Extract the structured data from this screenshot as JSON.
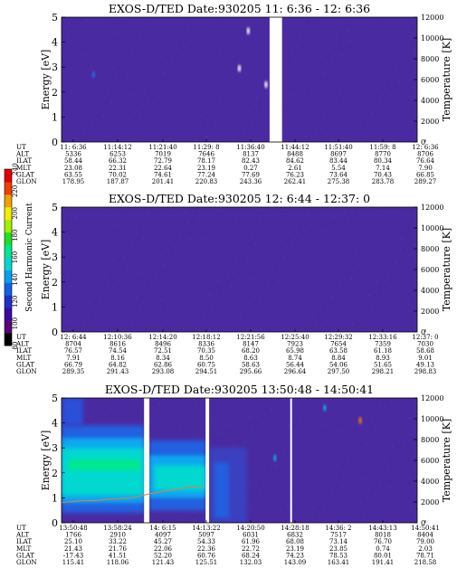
{
  "colorbar": {
    "label": "Second Harmonic Current",
    "ticks": [
      "80",
      "100",
      "120",
      "140",
      "160",
      "180",
      "200",
      "220",
      "240"
    ],
    "colors": [
      "#000000",
      "#5a0078",
      "#3a0aa0",
      "#2030c8",
      "#1060e8",
      "#00a0f0",
      "#00d8d0",
      "#00e890",
      "#20e020",
      "#a0f000",
      "#f0f000",
      "#f0a000",
      "#f04000",
      "#e00000"
    ]
  },
  "chart_data": [
    {
      "type": "heatmap",
      "title": "EXOS-D/TED   Date:930205   11: 6:36 - 12: 6:36",
      "ylabel": "Energy [eV]",
      "y2label": "Temperature [K]",
      "ylim": [
        0,
        5
      ],
      "yticks": [
        "0",
        "1",
        "2",
        "3",
        "4",
        "5"
      ],
      "y2lim": [
        0,
        12000
      ],
      "y2ticks": [
        "0",
        "2000",
        "4000",
        "6000",
        "8000",
        "10000",
        "12000"
      ],
      "background": "#4a2aa0",
      "gaps": [
        [
          0.585,
          0.62
        ]
      ],
      "features": [
        {
          "kind": "spot",
          "x": 0.5,
          "y": 2.95,
          "color": "#ffffff"
        },
        {
          "kind": "spot",
          "x": 0.525,
          "y": 4.45,
          "color": "#ffffff"
        },
        {
          "kind": "spot",
          "x": 0.575,
          "y": 2.3,
          "color": "#ffffff"
        },
        {
          "kind": "spot",
          "x": 0.09,
          "y": 2.7,
          "color": "#2a6ae0"
        }
      ],
      "temperature_trace": [],
      "rows": [
        {
          "label": "UT",
          "values": [
            "11: 6:36",
            "11:14:12",
            "11:21:40",
            "11:29: 8",
            "11:36:40",
            "11:44:12",
            "11:51:40",
            "11:59: 8",
            "12: 6:36"
          ]
        },
        {
          "label": "ALT",
          "values": [
            "5336",
            "6253",
            "7019",
            "7646",
            "8137",
            "8488",
            "8697",
            "8770",
            "8706"
          ]
        },
        {
          "label": "ILAT",
          "values": [
            "58.44",
            "66.32",
            "72.79",
            "78.17",
            "82.43",
            "84.62",
            "83.44",
            "80.34",
            "76.64"
          ]
        },
        {
          "label": "MLT",
          "values": [
            "23.08",
            "22.31",
            "22.64",
            "23.19",
            "0.27",
            "2.61",
            "5.54",
            "7.14",
            "7.90"
          ]
        },
        {
          "label": "GLAT",
          "values": [
            "63.55",
            "70.02",
            "74.61",
            "77.24",
            "77.69",
            "76.23",
            "73.64",
            "70.43",
            "66.85"
          ]
        },
        {
          "label": "GLON",
          "values": [
            "178.95",
            "187.87",
            "201.41",
            "220.83",
            "243.36",
            "262.41",
            "275.38",
            "283.78",
            "289.27"
          ]
        }
      ]
    },
    {
      "type": "heatmap",
      "title": "EXOS-D/TED   Date:930205   12: 6:44 - 12:37: 0",
      "ylabel": "Energy [eV]",
      "y2label": "Temperature [K]",
      "ylim": [
        0,
        5
      ],
      "yticks": [
        "0",
        "1",
        "2",
        "3",
        "4",
        "5"
      ],
      "y2lim": [
        0,
        12000
      ],
      "y2ticks": [
        "0",
        "2000",
        "4000",
        "6000",
        "8000",
        "10000",
        "12000"
      ],
      "background": "#4a2aa0",
      "gaps": [],
      "features": [],
      "temperature_trace": [],
      "rows": [
        {
          "label": "UT",
          "values": [
            "12: 6:44",
            "12:10:36",
            "12:14:20",
            "12:18:12",
            "12:21:56",
            "12:25:40",
            "12:29:32",
            "12:33:16",
            "12:37: 0"
          ]
        },
        {
          "label": "ALT",
          "values": [
            "8704",
            "8616",
            "8496",
            "8336",
            "8147",
            "7923",
            "7654",
            "7359",
            "7030"
          ]
        },
        {
          "label": "ILAT",
          "values": [
            "76.57",
            "74.54",
            "72.51",
            "70.35",
            "68.20",
            "65.98",
            "63.58",
            "61.18",
            "58.68"
          ]
        },
        {
          "label": "MLT",
          "values": [
            "7.91",
            "8.16",
            "8.34",
            "8.50",
            "8.63",
            "8.74",
            "8.84",
            "8.93",
            "9.01"
          ]
        },
        {
          "label": "GLAT",
          "values": [
            "66.79",
            "64.82",
            "62.86",
            "60.75",
            "58.63",
            "56.44",
            "54.06",
            "51.65",
            "49.13"
          ]
        },
        {
          "label": "GLON",
          "values": [
            "289.35",
            "291.43",
            "293.08",
            "294.51",
            "295.66",
            "296.64",
            "297.50",
            "298.21",
            "298.83"
          ]
        }
      ]
    },
    {
      "type": "heatmap",
      "title": "EXOS-D/TED   Date:930205   13:50:48 - 14:50:41",
      "ylabel": "Energy [eV]",
      "y2label": "Temperature [K]",
      "ylim": [
        0,
        5
      ],
      "yticks": [
        "0",
        "1",
        "2",
        "3",
        "4",
        "5"
      ],
      "y2lim": [
        0,
        12000
      ],
      "y2ticks": [
        "0",
        "2000",
        "4000",
        "6000",
        "8000",
        "10000",
        "12000"
      ],
      "background": "#4a2aa0",
      "gaps": [
        [
          0.232,
          0.247
        ],
        [
          0.405,
          0.415
        ],
        [
          0.643,
          0.648
        ]
      ],
      "features": [
        {
          "kind": "band",
          "x0": 0.0,
          "x1": 0.232,
          "y0": 0.4,
          "y1": 3.9,
          "color": "#2060e0"
        },
        {
          "kind": "band",
          "x0": 0.0,
          "x1": 0.232,
          "y0": 0.8,
          "y1": 3.4,
          "color": "#10a8f0"
        },
        {
          "kind": "band",
          "x0": 0.0,
          "x1": 0.232,
          "y0": 1.1,
          "y1": 3.0,
          "color": "#00d8d0"
        },
        {
          "kind": "band",
          "x0": 0.02,
          "x1": 0.22,
          "y0": 2.1,
          "y1": 2.55,
          "color": "#00e890"
        },
        {
          "kind": "band",
          "x0": 0.0,
          "x1": 0.06,
          "y0": 3.9,
          "y1": 5.0,
          "color": "#2a50d8"
        },
        {
          "kind": "band",
          "x0": 0.247,
          "x1": 0.405,
          "y0": 0.5,
          "y1": 3.3,
          "color": "#2060e0"
        },
        {
          "kind": "band",
          "x0": 0.247,
          "x1": 0.405,
          "y0": 1.0,
          "y1": 2.7,
          "color": "#10a8f0"
        },
        {
          "kind": "band",
          "x0": 0.26,
          "x1": 0.405,
          "y0": 1.3,
          "y1": 2.3,
          "color": "#00d8d0"
        },
        {
          "kind": "band",
          "x0": 0.415,
          "x1": 0.52,
          "y0": 0.0,
          "y1": 3.0,
          "color": "#3a40c0"
        },
        {
          "kind": "band",
          "x0": 0.43,
          "x1": 0.47,
          "y0": 0.2,
          "y1": 2.4,
          "color": "#2060e0"
        },
        {
          "kind": "spot",
          "x": 0.84,
          "y": 4.1,
          "color": "#f08000"
        },
        {
          "kind": "spot",
          "x": 0.74,
          "y": 4.6,
          "color": "#10a8f0"
        },
        {
          "kind": "spot",
          "x": 0.6,
          "y": 2.6,
          "color": "#10a8f0"
        }
      ],
      "temperature_trace": [
        [
          0.0,
          1950
        ],
        [
          0.05,
          2100
        ],
        [
          0.1,
          2150
        ],
        [
          0.15,
          2300
        ],
        [
          0.2,
          2400
        ],
        [
          0.25,
          2800
        ],
        [
          0.3,
          3100
        ],
        [
          0.35,
          3400
        ],
        [
          0.4,
          3550
        ]
      ],
      "rows": [
        {
          "label": "UT",
          "values": [
            "13:50:48",
            "13:58:24",
            "14: 6:15",
            "14:13:22",
            "14:20:50",
            "14:28:18",
            "14:36: 2",
            "14:43:13",
            "14:50:41"
          ]
        },
        {
          "label": "ALT",
          "values": [
            "1766",
            "2910",
            "4097",
            "5097",
            "6031",
            "6832",
            "7517",
            "8018",
            "8404"
          ]
        },
        {
          "label": "ILAT",
          "values": [
            "25.10",
            "33.22",
            "45.27",
            "54.33",
            "61.96",
            "68.08",
            "73.14",
            "76.70",
            "79.00"
          ]
        },
        {
          "label": "MLT",
          "values": [
            "21.43",
            "21.76",
            "22.06",
            "22.36",
            "22.72",
            "23.19",
            "23.85",
            "0.74",
            "2.03"
          ]
        },
        {
          "label": "GLAT",
          "values": [
            "-17.43",
            "41.51",
            "52.20",
            "60.76",
            "68.24",
            "74.23",
            "78.53",
            "80.01",
            "78.71"
          ]
        },
        {
          "label": "GLON",
          "values": [
            "115.41",
            "118.06",
            "121.43",
            "125.51",
            "132.03",
            "143.09",
            "163.41",
            "191.41",
            "218.58"
          ]
        }
      ]
    }
  ]
}
